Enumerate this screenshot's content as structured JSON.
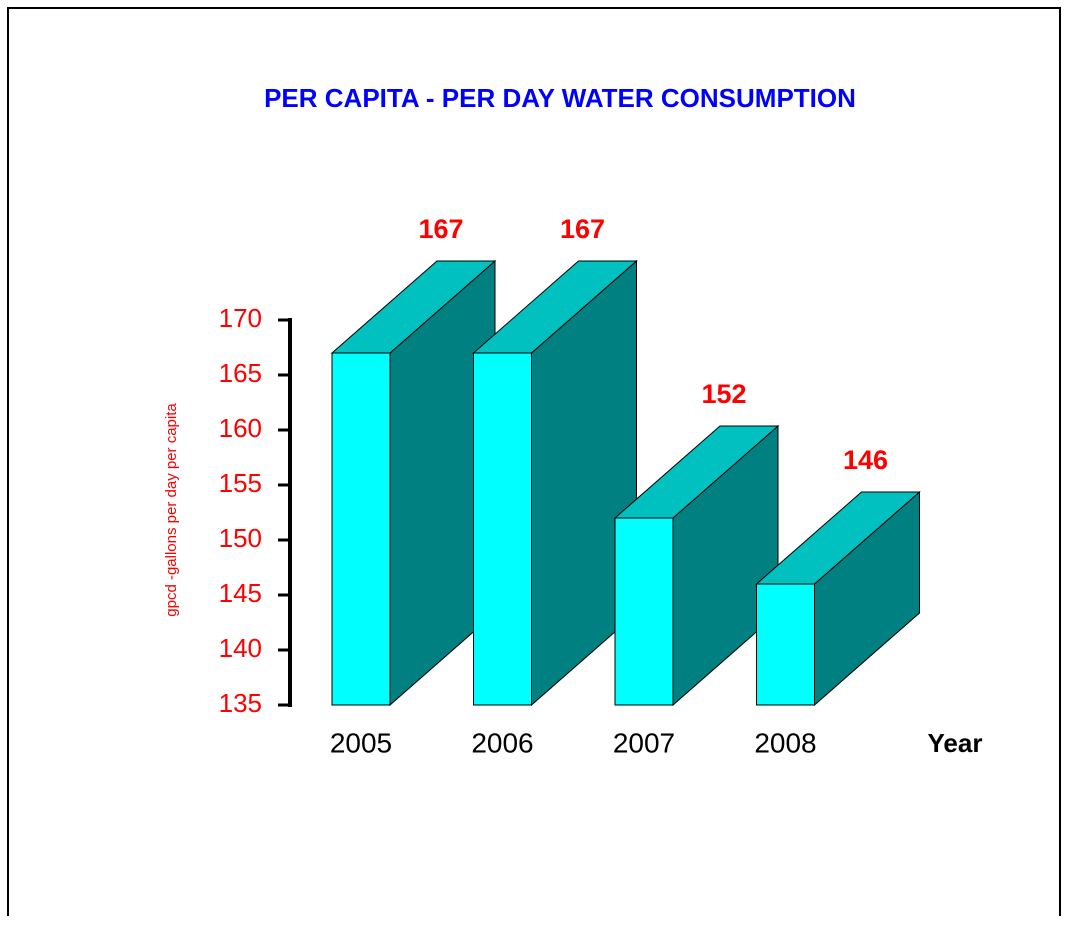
{
  "chart_data": {
    "type": "bar3d",
    "title": "PER CAPITA - PER DAY WATER CONSUMPTION",
    "y_label": "gpcd -gallons per day per capita",
    "x_label": "Year",
    "categories": [
      "2005",
      "2006",
      "2007",
      "2008"
    ],
    "values": [
      167,
      167,
      152,
      146
    ],
    "colors": {
      "front": "#00ffff",
      "side": "#008080",
      "top": "#00c0c0"
    },
    "ylim": [
      135,
      170
    ],
    "yticks": [
      135,
      140,
      145,
      150,
      155,
      160,
      165,
      170
    ]
  }
}
